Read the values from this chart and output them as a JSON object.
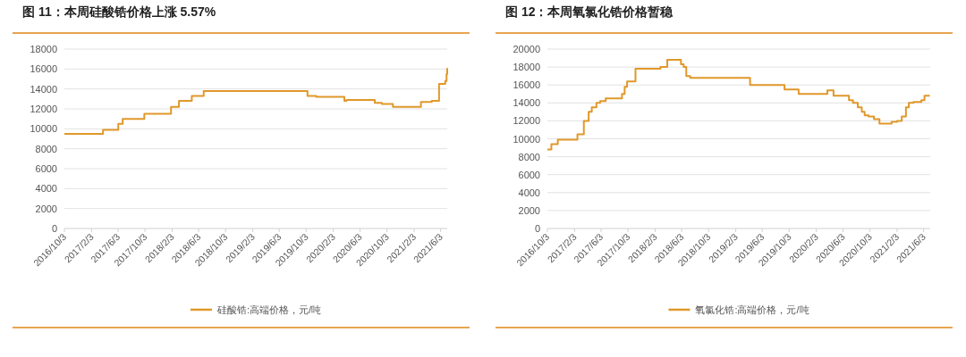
{
  "chart_data": [
    {
      "type": "step",
      "title": "图 11：本周硅酸锆价格上涨 5.57%",
      "x": [
        "2016-10-03",
        "2017-03-27",
        "2017-06-04",
        "2017-06-24",
        "2017-09-30",
        "2018-01-29",
        "2018-03-06",
        "2018-05-03",
        "2018-06-26",
        "2019-10-09",
        "2019-11-18",
        "2020-03-24",
        "2020-04-03",
        "2020-08-09",
        "2020-09-10",
        "2020-10-30",
        "2021-03-06",
        "2021-04-24",
        "2021-05-27",
        "2021-06-24",
        "2021-06-30",
        "2021-07-03"
      ],
      "series": [
        {
          "name": "硅酸锆:高端价格，元/吨",
          "color": "#e0982a",
          "values": [
            9500,
            9900,
            10500,
            11000,
            11500,
            12200,
            12800,
            13300,
            13800,
            13300,
            13200,
            12800,
            12900,
            12600,
            12500,
            12200,
            12700,
            12800,
            14500,
            14800,
            15500,
            16100
          ]
        }
      ],
      "xlim": [
        "2016-10-03",
        "2021-07-03"
      ],
      "xticks": [
        {
          "value": "2016-10-03",
          "label": "2016/10/3"
        },
        {
          "value": "2017-02-03",
          "label": "2017/2/3"
        },
        {
          "value": "2017-06-03",
          "label": "2017/6/3"
        },
        {
          "value": "2017-10-03",
          "label": "2017/10/3"
        },
        {
          "value": "2018-02-03",
          "label": "2018/2/3"
        },
        {
          "value": "2018-06-03",
          "label": "2018/6/3"
        },
        {
          "value": "2018-10-03",
          "label": "2018/10/3"
        },
        {
          "value": "2019-02-03",
          "label": "2019/2/3"
        },
        {
          "value": "2019-06-03",
          "label": "2019/6/3"
        },
        {
          "value": "2019-10-03",
          "label": "2019/10/3"
        },
        {
          "value": "2020-02-03",
          "label": "2020/2/3"
        },
        {
          "value": "2020-06-03",
          "label": "2020/6/3"
        },
        {
          "value": "2020-10-03",
          "label": "2020/10/3"
        },
        {
          "value": "2021-02-03",
          "label": "2021/2/3"
        },
        {
          "value": "2021-06-03",
          "label": "2021/6/3"
        }
      ],
      "ylim": [
        0,
        18000
      ],
      "yticks": [
        0,
        2000,
        4000,
        6000,
        8000,
        10000,
        12000,
        14000,
        16000,
        18000
      ],
      "grid": "y",
      "legend": "bottom"
    },
    {
      "type": "step",
      "title": "图 12：本周氧氯化锆价格暂稳",
      "x": [
        "2016-10-03",
        "2016-10-21",
        "2016-11-19",
        "2017-02-16",
        "2017-03-17",
        "2017-04-08",
        "2017-04-22",
        "2017-05-13",
        "2017-05-30",
        "2017-06-24",
        "2017-09-06",
        "2017-09-18",
        "2017-09-29",
        "2017-11-06",
        "2018-02-27",
        "2018-03-30",
        "2018-05-31",
        "2018-06-12",
        "2018-06-24",
        "2018-07-12",
        "2019-04-09",
        "2019-09-12",
        "2019-11-15",
        "2020-03-24",
        "2020-04-21",
        "2020-06-30",
        "2020-07-18",
        "2020-08-09",
        "2020-08-27",
        "2020-09-09",
        "2020-09-27",
        "2020-10-21",
        "2020-11-15",
        "2021-01-09",
        "2021-02-03",
        "2021-02-24",
        "2021-03-15",
        "2021-03-28",
        "2021-04-18",
        "2021-05-24",
        "2021-06-07",
        "2021-07-01"
      ],
      "series": [
        {
          "name": "氧氯化锆:高端价格，元/吨",
          "color": "#e0982a",
          "values": [
            8800,
            9400,
            9900,
            10500,
            12000,
            13000,
            13500,
            14000,
            14200,
            14500,
            15000,
            15800,
            16400,
            17800,
            18000,
            18800,
            18300,
            18000,
            17000,
            16800,
            16000,
            15500,
            15000,
            15400,
            14800,
            14300,
            14000,
            13500,
            13000,
            12600,
            12500,
            12200,
            11700,
            11900,
            12000,
            12500,
            13500,
            14000,
            14100,
            14300,
            14800,
            14800
          ]
        }
      ],
      "xlim": [
        "2016-10-03",
        "2021-07-03"
      ],
      "xticks": [
        {
          "value": "2016-10-03",
          "label": "2016/10/3"
        },
        {
          "value": "2017-02-03",
          "label": "2017/2/3"
        },
        {
          "value": "2017-06-03",
          "label": "2017/6/3"
        },
        {
          "value": "2017-10-03",
          "label": "2017/10/3"
        },
        {
          "value": "2018-02-03",
          "label": "2018/2/3"
        },
        {
          "value": "2018-06-03",
          "label": "2018/6/3"
        },
        {
          "value": "2018-10-03",
          "label": "2018/10/3"
        },
        {
          "value": "2019-02-03",
          "label": "2019/2/3"
        },
        {
          "value": "2019-06-03",
          "label": "2019/6/3"
        },
        {
          "value": "2019-10-03",
          "label": "2019/10/3"
        },
        {
          "value": "2020-02-03",
          "label": "2020/2/3"
        },
        {
          "value": "2020-06-03",
          "label": "2020/6/3"
        },
        {
          "value": "2020-10-03",
          "label": "2020/10/3"
        },
        {
          "value": "2021-02-03",
          "label": "2021/2/3"
        },
        {
          "value": "2021-06-03",
          "label": "2021/6/3"
        }
      ],
      "ylim": [
        0,
        20000
      ],
      "yticks": [
        0,
        2000,
        4000,
        6000,
        8000,
        10000,
        12000,
        14000,
        16000,
        18000,
        20000
      ],
      "grid": "y",
      "legend": "bottom"
    }
  ]
}
